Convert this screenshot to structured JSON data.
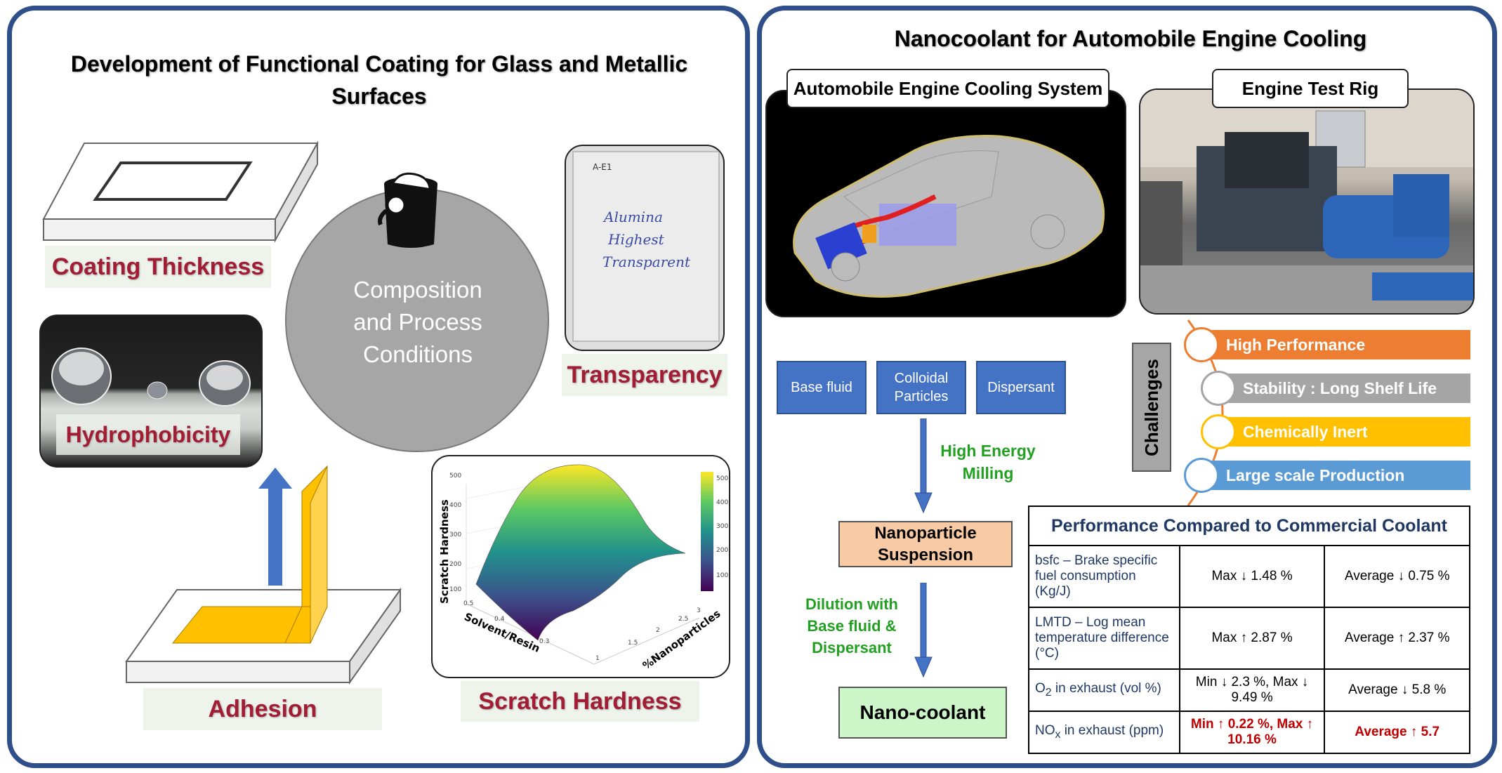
{
  "left": {
    "title": "Development of Functional Coating for Glass and Metallic Surfaces",
    "circle_text": "Composition and Process Conditions",
    "labels": {
      "coating_thickness": "Coating Thickness",
      "hydrophobicity": "Hydrophobicity",
      "adhesion": "Adhesion",
      "transparency": "Transparency",
      "scratch_hardness": "Scratch Hardness"
    },
    "glass_note": {
      "line0": "A-E1",
      "line1": "Alumina",
      "line2": "Highest",
      "line3": "Transparent"
    },
    "plot": {
      "zlabel": "Scratch Hardness",
      "xlabel": "Solvent/Resin",
      "ylabel": "%Nanoparticles",
      "z_ticks": [
        "500",
        "400",
        "300",
        "200",
        "100"
      ],
      "x_ticks": [
        "0.5",
        "0.4",
        "0.3"
      ],
      "y_ticks": [
        "1",
        "1.5",
        "2",
        "2.5",
        "3"
      ],
      "colorbar_ticks": [
        "500",
        "400",
        "300",
        "200",
        "100"
      ]
    }
  },
  "right": {
    "title": "Nanocoolant for Automobile Engine Cooling",
    "tag_cooling": "Automobile Engine Cooling System",
    "tag_rig": "Engine Test Rig",
    "inputs": [
      "Base fluid",
      "Colloidal Particles",
      "Dispersant"
    ],
    "step1": "High Energy Milling",
    "suspension": "Nanoparticle Suspension",
    "step2": "Dilution with Base fluid & Dispersant",
    "product": "Nano-coolant",
    "challenges_label": "Challenges",
    "challenges": [
      "High Performance",
      "Stability : Long Shelf Life",
      "Chemically Inert",
      "Large scale Production"
    ],
    "colors": {
      "orange": "#ed7d31",
      "gray": "#a5a5a5",
      "gold": "#ffc000",
      "blue": "#5b9bd5",
      "accent": "#4472c4"
    },
    "table": {
      "title": "Performance Compared to Commercial Coolant",
      "rows": [
        {
          "param": "bsfc – Brake specific fuel consumption (Kg/J)",
          "a": "Max ↓ 1.48 %",
          "b": "Average ↓ 0.75 %"
        },
        {
          "param": "LMTD – Log mean temperature difference (°C)",
          "a": "Max ↑ 2.87 %",
          "b": "Average ↑ 2.37 %"
        },
        {
          "param_pre": "O",
          "param_sub": "2",
          "param_post": " in exhaust (vol %)",
          "a": "Min ↓ 2.3 %, Max ↓ 9.49 %",
          "b": "Average ↓ 5.8 %"
        },
        {
          "param_pre": "NO",
          "param_sub": "x",
          "param_post": " in exhaust (ppm)",
          "a": "Min ↑ 0.22 %, Max ↑ 10.16 %",
          "b": "Average ↑ 5.7"
        }
      ]
    }
  }
}
